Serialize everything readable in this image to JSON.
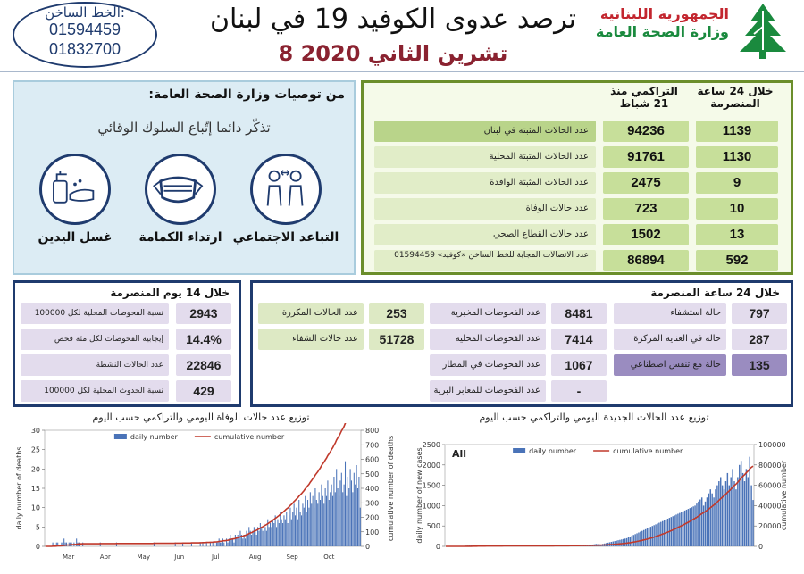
{
  "header": {
    "hotline_label": "الخط الساخن:",
    "hotline_numbers": [
      "01594459",
      "01832700"
    ],
    "title": "ترصد عدوى الكوفيد 19 في لبنان",
    "date": "8 تشرين الثاني 2020",
    "ministry_line1": "الجمهورية اللبنانية",
    "ministry_line2": "وزارة الصحة العامة",
    "brand_red": "#c3262f",
    "brand_green": "#1a8a3e"
  },
  "recommendations": {
    "title": "من توصيات وزارة الصحة العامة:",
    "subtitle": "تذكّر دائما إتّباع السلوك الوقائي",
    "items": [
      {
        "label": "التباعد الاجتماعي",
        "icon": "social-distancing-icon"
      },
      {
        "label": "ارتداء الكمامة",
        "icon": "face-mask-icon"
      },
      {
        "label": "غسل اليدين",
        "icon": "hand-washing-icon"
      }
    ]
  },
  "summary": {
    "col_24h": "خلال 24 ساعة المنصرمة",
    "col_cumulative": "التراكمي منذ 21 شباط",
    "rows": [
      {
        "label": "عدد الحالات المثبتة في لبنان",
        "cumulative": "94236",
        "last24": "1139"
      },
      {
        "label": "عدد الحالات المثبتة المحلية",
        "cumulative": "91761",
        "last24": "1130"
      },
      {
        "label": "عدد الحالات المثبتة الوافدة",
        "cumulative": "2475",
        "last24": "9"
      },
      {
        "label": "عدد حالات الوفاة",
        "cumulative": "723",
        "last24": "10"
      },
      {
        "label": "عدد حالات القطاع الصحي",
        "cumulative": "1502",
        "last24": "13"
      },
      {
        "label": "عدد الاتصالات المجابة للخط الساخن «كوفيد» 01594459",
        "cumulative": "86894",
        "last24": "592"
      }
    ]
  },
  "last14": {
    "title": "خلال 14 يوم المنصرمة",
    "rows": [
      {
        "label": "نسبة الفحوصات المحلية لكل 100000",
        "value": "2943"
      },
      {
        "label": "إيجابية الفحوصات لكل مئة فحص",
        "value": "14.4%"
      },
      {
        "label": "عدد الحالات النشطة",
        "value": "22846"
      },
      {
        "label": "نسبة الحدوث المحلية لكل 100000",
        "value": "429"
      }
    ]
  },
  "last24": {
    "title": "خلال 24 ساعة المنصرمة",
    "hospital": [
      {
        "label": "حالة استشفاء",
        "value": "797"
      },
      {
        "label": "حالة في العناية المركزة",
        "value": "287"
      },
      {
        "label": "حالة مع تنفس اصطناعي",
        "value": "135"
      }
    ],
    "tests": [
      {
        "label": "عدد الفحوصات المخبرية",
        "value": "8481"
      },
      {
        "label": "عدد الفحوصات المحلية",
        "value": "7414"
      },
      {
        "label": "عدد الفحوصات في المطار",
        "value": "1067"
      },
      {
        "label": "عدد الفحوصات للمعابر البرية",
        "value": "-"
      }
    ],
    "other": [
      {
        "label": "عدد الحالات المكررة",
        "value": "253"
      },
      {
        "label": "عدد حالات الشفاء",
        "value": "51728"
      }
    ]
  },
  "chart_data": [
    {
      "type": "bar",
      "title": "توزيع عدد حالات الوفاة اليومي والتراكمي حسب اليوم",
      "ylabel": "daily number of deaths",
      "y2label": "cumulative number of deaths",
      "ylim": [
        0,
        30
      ],
      "y2lim": [
        0,
        800
      ],
      "yticks": [
        0,
        5,
        10,
        15,
        20,
        25,
        30
      ],
      "y2ticks": [
        0,
        100,
        200,
        300,
        400,
        500,
        600,
        700,
        800
      ],
      "months": [
        "Mar",
        "Apr",
        "May",
        "Jun",
        "Jul",
        "Aug",
        "Sep",
        "Oct"
      ],
      "series": [
        {
          "name": "daily number",
          "color": "#4a73b8",
          "values": [
            0,
            0,
            0,
            0,
            0,
            0,
            1,
            0,
            0,
            1,
            1,
            0,
            0,
            1,
            1,
            2,
            1,
            1,
            0,
            1,
            1,
            1,
            0,
            1,
            0,
            2,
            1,
            1,
            0,
            0,
            1,
            0,
            0,
            0,
            0,
            0,
            0,
            0,
            0,
            0,
            0,
            0,
            0,
            0,
            1,
            0,
            0,
            0,
            0,
            0,
            0,
            0,
            0,
            0,
            0,
            0,
            0,
            1,
            0,
            0,
            0,
            0,
            0,
            0,
            0,
            0,
            0,
            0,
            0,
            0,
            0,
            0,
            0,
            0,
            0,
            0,
            0,
            0,
            0,
            0,
            0,
            0,
            0,
            0,
            0,
            0,
            0,
            1,
            0,
            0,
            0,
            0,
            0,
            0,
            0,
            0,
            0,
            0,
            0,
            0,
            0,
            0,
            0,
            0,
            1,
            0,
            0,
            0,
            0,
            0,
            1,
            0,
            0,
            0,
            0,
            0,
            0,
            1,
            0,
            0,
            0,
            0,
            0,
            0,
            1,
            0,
            1,
            0,
            0,
            1,
            0,
            0,
            1,
            0,
            1,
            1,
            0,
            1,
            1,
            2,
            1,
            1,
            2,
            1,
            0,
            2,
            1,
            2,
            3,
            2,
            2,
            1,
            3,
            2,
            3,
            2,
            4,
            3,
            2,
            3,
            2,
            4,
            3,
            5,
            4,
            3,
            4,
            5,
            4,
            3,
            5,
            4,
            6,
            5,
            4,
            6,
            5,
            4,
            7,
            5,
            6,
            5,
            7,
            6,
            8,
            5,
            7,
            6,
            9,
            7,
            6,
            8,
            7,
            9,
            6,
            8,
            10,
            7,
            9,
            11,
            8,
            10,
            7,
            12,
            9,
            8,
            11,
            10,
            13,
            9,
            12,
            10,
            14,
            11,
            13,
            10,
            15,
            12,
            11,
            14,
            12,
            16,
            13,
            11,
            15,
            13,
            17,
            12,
            14,
            16,
            13,
            18,
            14,
            20,
            15,
            13,
            17,
            19,
            14,
            16,
            22,
            13,
            18,
            15,
            20,
            17,
            14,
            19,
            16,
            21,
            15,
            18,
            10
          ]
        },
        {
          "name": "cumulative number",
          "color": "#c0392b"
        }
      ]
    },
    {
      "type": "bar",
      "title": "توزيع عدد الحالات الجديدة اليومي والتراكمي حسب اليوم",
      "label": "All",
      "ylabel": "daily number of new cases",
      "y2label": "cumulative number",
      "ylim": [
        0,
        2500
      ],
      "y2lim": [
        0,
        100000
      ],
      "yticks": [
        0,
        500,
        1000,
        1500,
        2000,
        2500
      ],
      "y2ticks": [
        0,
        20000,
        40000,
        60000,
        80000,
        100000
      ],
      "series": [
        {
          "name": "daily number",
          "color": "#4a73b8",
          "values": [
            0,
            0,
            0,
            0,
            0,
            0,
            2,
            3,
            5,
            8,
            10,
            12,
            15,
            18,
            20,
            22,
            25,
            30,
            28,
            25,
            22,
            20,
            18,
            15,
            14,
            12,
            10,
            8,
            10,
            12,
            8,
            6,
            5,
            6,
            8,
            10,
            8,
            5,
            4,
            5,
            3,
            4,
            5,
            6,
            4,
            3,
            5,
            8,
            10,
            6,
            5,
            4,
            3,
            2,
            5,
            8,
            10,
            12,
            8,
            6,
            5,
            4,
            6,
            8,
            10,
            12,
            15,
            10,
            8,
            6,
            5,
            8,
            10,
            12,
            15,
            20,
            18,
            15,
            12,
            10,
            15,
            20,
            25,
            30,
            35,
            40,
            45,
            50,
            60,
            55,
            50,
            45,
            60,
            70,
            80,
            90,
            100,
            110,
            120,
            130,
            140,
            150,
            160,
            170,
            180,
            190,
            200,
            220,
            240,
            260,
            280,
            300,
            320,
            340,
            360,
            380,
            400,
            420,
            440,
            460,
            480,
            500,
            520,
            540,
            560,
            580,
            600,
            620,
            640,
            660,
            680,
            700,
            720,
            740,
            760,
            780,
            800,
            820,
            840,
            860,
            880,
            900,
            920,
            940,
            960,
            980,
            1000,
            1050,
            1100,
            1150,
            1200,
            1000,
            1100,
            1200,
            1300,
            1400,
            1300,
            1200,
            1400,
            1500,
            1600,
            1700,
            1500,
            1400,
            1600,
            1800,
            1500,
            1700,
            1900,
            1600,
            1400,
            1700,
            2000,
            2100,
            1800,
            1600,
            1900,
            1700,
            2200,
            1500,
            1139
          ]
        },
        {
          "name": "cumulative number",
          "color": "#c0392b"
        }
      ]
    }
  ]
}
